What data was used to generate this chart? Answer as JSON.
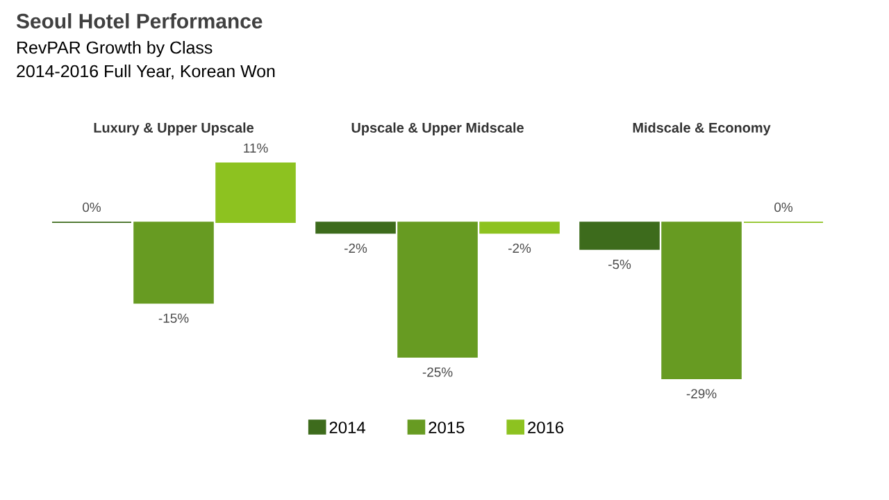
{
  "chart_data": {
    "type": "bar",
    "title": "Seoul Hotel Performance",
    "subtitle": "RevPAR Growth by Class",
    "annotations": [
      "2014-2016 Full Year, Korean Won"
    ],
    "categories": [
      "Luxury & Upper Upscale",
      "Upscale & Upper Midscale",
      "Midscale & Economy"
    ],
    "series": [
      {
        "name": "2014",
        "color": "#3d6b1c",
        "values": [
          0,
          -2,
          -5
        ],
        "value_labels": [
          "0%",
          "-2%",
          "-5%"
        ]
      },
      {
        "name": "2015",
        "color": "#679b22",
        "values": [
          -15,
          -25,
          -29
        ],
        "value_labels": [
          "-15%",
          "-25%",
          "-29%"
        ]
      },
      {
        "name": "2016",
        "color": "#8dc220",
        "values": [
          11,
          -2,
          0
        ],
        "value_labels": [
          "11%",
          "-2%",
          "0%"
        ]
      }
    ],
    "legend": "bottom"
  }
}
